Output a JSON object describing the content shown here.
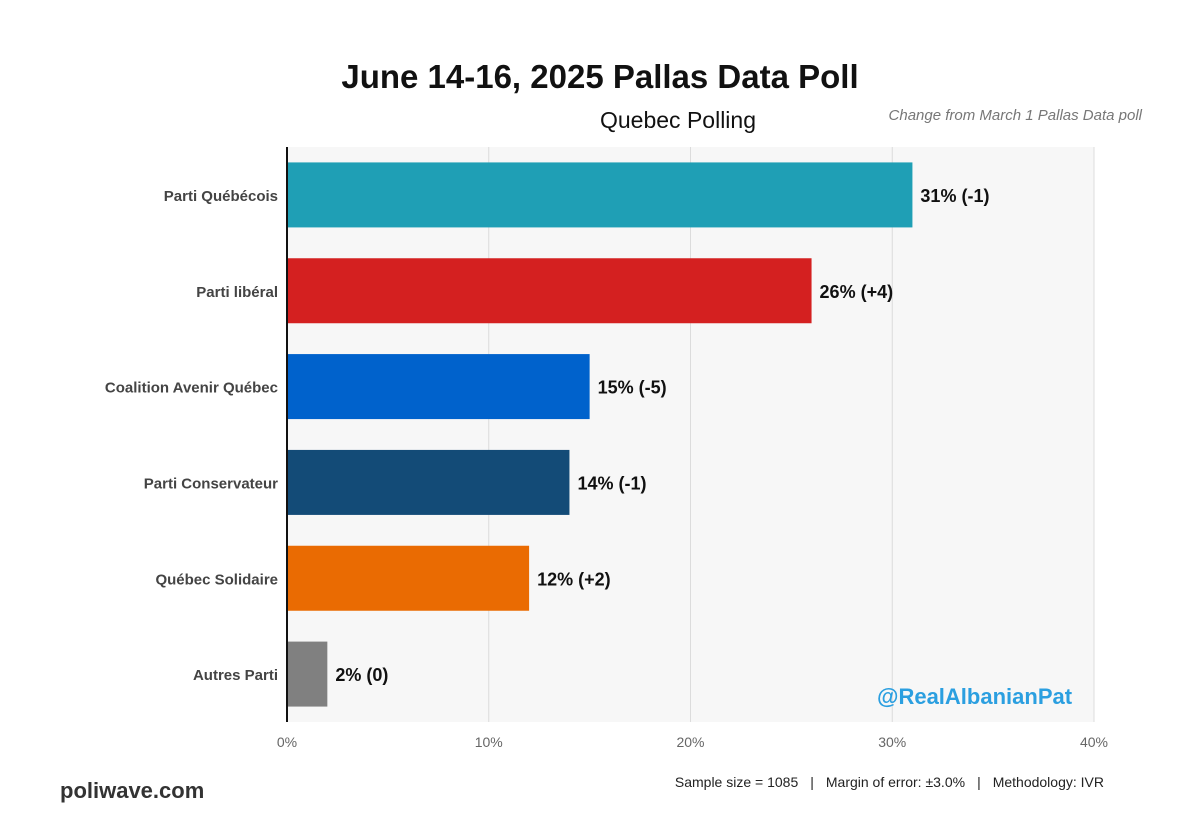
{
  "chart_data": {
    "type": "bar",
    "orientation": "horizontal",
    "title": "June 14-16, 2025 Pallas Data Poll",
    "subtitle": "Quebec Polling",
    "note": "Change from March 1 Pallas Data poll",
    "categories": [
      "Parti Québécois",
      "Parti libéral",
      "Coalition Avenir Québec",
      "Parti Conservateur",
      "Québec Solidaire",
      "Autres Parti"
    ],
    "values": [
      31,
      26,
      15,
      14,
      12,
      2
    ],
    "data_labels": [
      "31% (-1)",
      "26% (+4)",
      "15% (-5)",
      "14% (-1)",
      "12% (+2)",
      "2% (0)"
    ],
    "colors": [
      "#1f9fb5",
      "#d42020",
      "#0062cc",
      "#134b77",
      "#ea6b02",
      "#808080"
    ],
    "xlim": [
      0,
      40
    ],
    "x_ticks": [
      0,
      10,
      20,
      30,
      40
    ],
    "x_tick_labels": [
      "0%",
      "10%",
      "20%",
      "30%",
      "40%"
    ],
    "xlabel": "",
    "ylabel": "",
    "grid": true,
    "legend": "none"
  },
  "watermark": "@RealAlbanianPat",
  "footer": {
    "source": "poliwave.com",
    "sample": "Sample size = 1085",
    "margin": "Margin of error: ±3.0%",
    "method": "Methodology: IVR",
    "separator": "|"
  }
}
